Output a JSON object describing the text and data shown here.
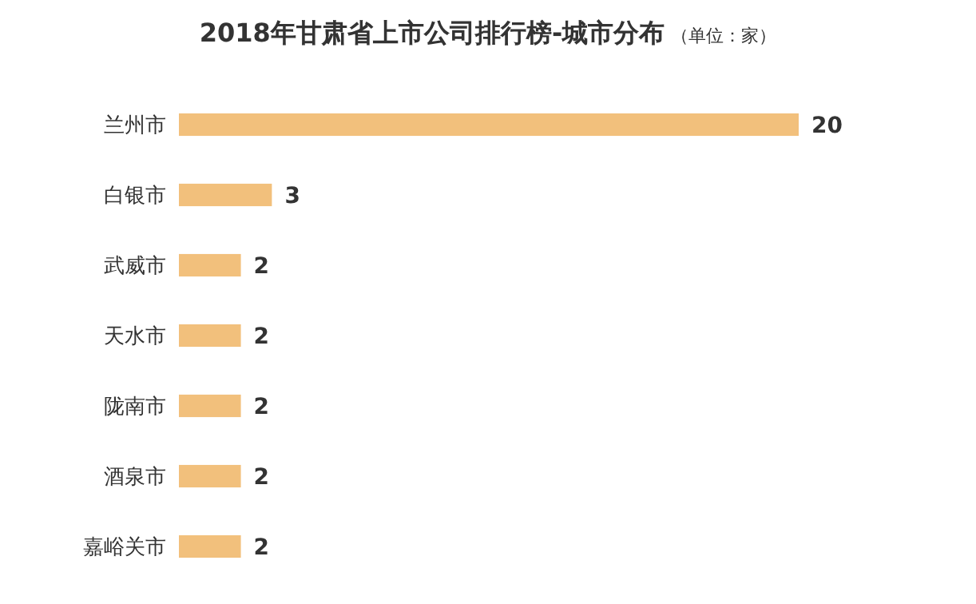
{
  "chart_data": {
    "type": "bar",
    "orientation": "horizontal",
    "title": "2018年甘肃省上市公司排行榜-城市分布",
    "subtitle": "（单位：家）",
    "categories": [
      "兰州市",
      "白银市",
      "武威市",
      "天水市",
      "陇南市",
      "酒泉市",
      "嘉峪关市"
    ],
    "values": [
      20,
      3,
      2,
      2,
      2,
      2,
      2
    ],
    "color": "#f2c07c",
    "data_labels": true
  }
}
